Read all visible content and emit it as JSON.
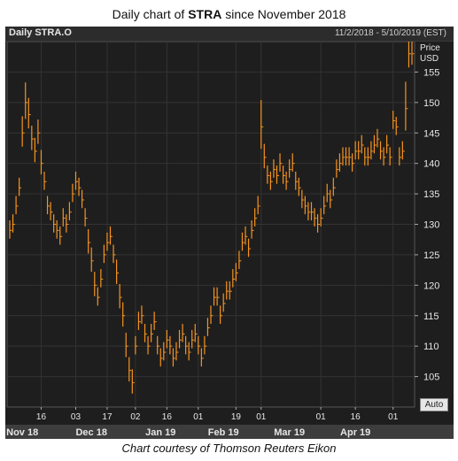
{
  "title_prefix": "Daily chart of ",
  "title_ticker": "STRA",
  "title_suffix": " since November 2018",
  "header": {
    "instrument": "Daily STRA.O",
    "date_range": "11/2/2018 - 5/10/2019 (EST)"
  },
  "y_label_line1": "Price",
  "y_label_line2": "USD",
  "auto_button": "Auto",
  "credit": "Chart courtesy of Thomson Reuters Eikon",
  "colors": {
    "background": "#1e1e1e",
    "bars": "#f7931e",
    "grid": "#333333",
    "text": "#e6e6e6"
  },
  "chart_data": {
    "type": "line",
    "style": "ohlc-bars",
    "grid": true,
    "ylim": [
      100,
      160
    ],
    "yticks": [
      105,
      110,
      115,
      120,
      125,
      130,
      135,
      140,
      145,
      150,
      155
    ],
    "day_ticks": [
      {
        "label": "16",
        "day": 10
      },
      {
        "label": "03",
        "day": 21
      },
      {
        "label": "17",
        "day": 31
      },
      {
        "label": "02",
        "day": 40
      },
      {
        "label": "16",
        "day": 50
      },
      {
        "label": "01",
        "day": 60
      },
      {
        "label": "19",
        "day": 72
      },
      {
        "label": "01",
        "day": 80
      },
      {
        "label": "01",
        "day": 99
      },
      {
        "label": "16",
        "day": 110
      },
      {
        "label": "01",
        "day": 122
      }
    ],
    "month_labels": [
      {
        "label": "Nov 18",
        "day": 4
      },
      {
        "label": "Dec 18",
        "day": 26
      },
      {
        "label": "Jan 19",
        "day": 48
      },
      {
        "label": "Feb 19",
        "day": 68
      },
      {
        "label": "Mar 19",
        "day": 89
      },
      {
        "label": "Apr 19",
        "day": 110
      }
    ],
    "x_count": 129,
    "series": [
      {
        "close": [
          129,
          130,
          133,
          136,
          145,
          150,
          148,
          144,
          142,
          145,
          140,
          137,
          133,
          132,
          130,
          129,
          128,
          131,
          130,
          132,
          135,
          137,
          136,
          134,
          131,
          127,
          124,
          120,
          118,
          121,
          125,
          127,
          128,
          125,
          122,
          118,
          115,
          110,
          106,
          104,
          110,
          114,
          115,
          112,
          110,
          112,
          114,
          110,
          108,
          109,
          111,
          110,
          108,
          109,
          111,
          112,
          110,
          109,
          111,
          112,
          110,
          108,
          110,
          113,
          115,
          118,
          118,
          115,
          117,
          119,
          119,
          121,
          122,
          124,
          127,
          128,
          126,
          129,
          131,
          133,
          146,
          141,
          138,
          137,
          139,
          138,
          140,
          138,
          137,
          139,
          140,
          137,
          136,
          134,
          133,
          132,
          132,
          131,
          130,
          131,
          133,
          135,
          134,
          136,
          139,
          140,
          141,
          141,
          141,
          140,
          142,
          142,
          143,
          141,
          141,
          142,
          143,
          144,
          142,
          141,
          143,
          141,
          147,
          146,
          141,
          142,
          149,
          158,
          158
        ],
        "range": [
          3,
          3,
          3,
          3,
          5,
          6,
          5,
          4,
          4,
          4,
          4,
          3,
          3,
          3,
          3,
          3,
          3,
          3,
          3,
          3,
          3,
          3,
          3,
          3,
          3,
          4,
          4,
          4,
          3,
          3,
          3,
          3,
          3,
          3,
          4,
          4,
          4,
          4,
          4,
          4,
          3,
          3,
          3,
          3,
          3,
          3,
          3,
          3,
          3,
          3,
          3,
          3,
          3,
          3,
          3,
          3,
          3,
          3,
          3,
          3,
          3,
          3,
          3,
          3,
          3,
          3,
          3,
          3,
          3,
          3,
          3,
          3,
          3,
          3,
          3,
          3,
          3,
          3,
          3,
          3,
          8,
          4,
          3,
          3,
          3,
          3,
          3,
          3,
          3,
          3,
          3,
          3,
          3,
          3,
          3,
          3,
          3,
          3,
          3,
          3,
          3,
          3,
          3,
          3,
          3,
          3,
          3,
          3,
          3,
          3,
          3,
          3,
          3,
          3,
          3,
          3,
          3,
          3,
          3,
          3,
          3,
          3,
          3,
          3,
          3,
          3,
          8,
          5,
          4
        ]
      }
    ]
  }
}
